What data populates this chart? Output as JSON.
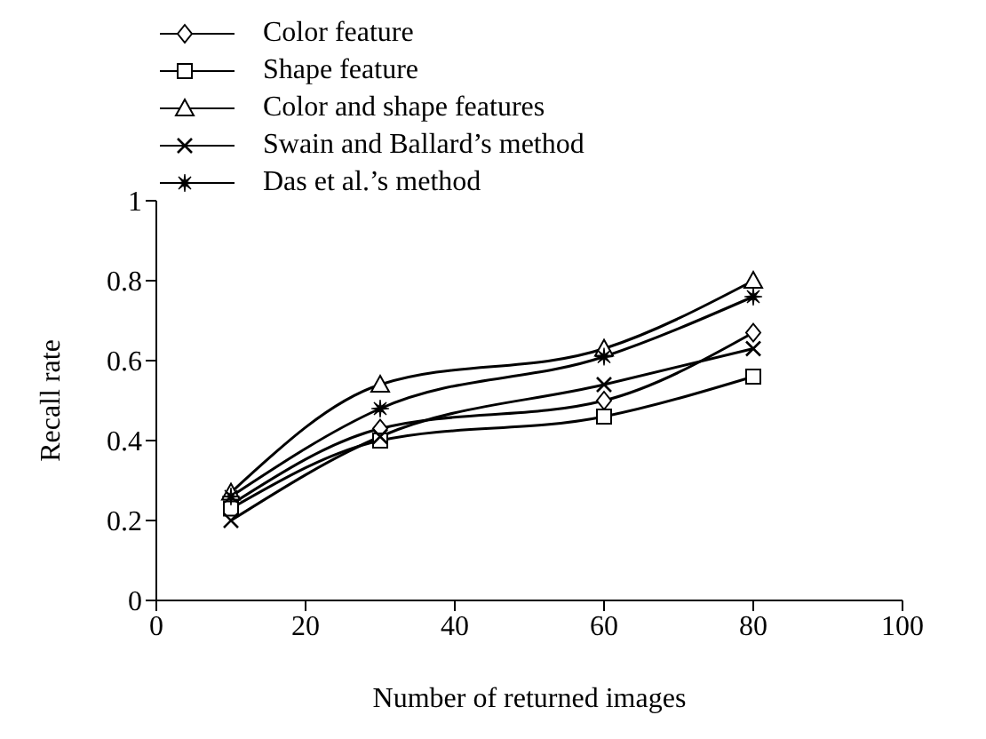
{
  "chart_data": {
    "type": "line",
    "xlabel": "Number of returned images",
    "ylabel": "Recall rate",
    "x": [
      10,
      30,
      60,
      80
    ],
    "series": [
      {
        "name": "Color feature",
        "color": "#000000",
        "marker": "diamond",
        "values": [
          0.24,
          0.43,
          0.5,
          0.67
        ]
      },
      {
        "name": "Shape feature",
        "color": "#000000",
        "marker": "square",
        "values": [
          0.23,
          0.4,
          0.46,
          0.56
        ]
      },
      {
        "name": "Color and shape features",
        "color": "#000000",
        "marker": "triangle",
        "values": [
          0.27,
          0.54,
          0.63,
          0.8
        ]
      },
      {
        "name": "Swain and Ballard’s method",
        "color": "#000000",
        "marker": "cross",
        "values": [
          0.2,
          0.41,
          0.54,
          0.63
        ]
      },
      {
        "name": "Das et al.’s method",
        "color": "#000000",
        "marker": "star",
        "values": [
          0.26,
          0.48,
          0.61,
          0.76
        ]
      }
    ],
    "xlim": [
      0,
      100
    ],
    "xticks": [
      0,
      20,
      40,
      60,
      80,
      100
    ],
    "ylim": [
      0,
      1
    ],
    "yticks": [
      0,
      0.2,
      0.4,
      0.6,
      0.8,
      1
    ],
    "grid": false,
    "legend": "top",
    "line_style": "solid"
  }
}
